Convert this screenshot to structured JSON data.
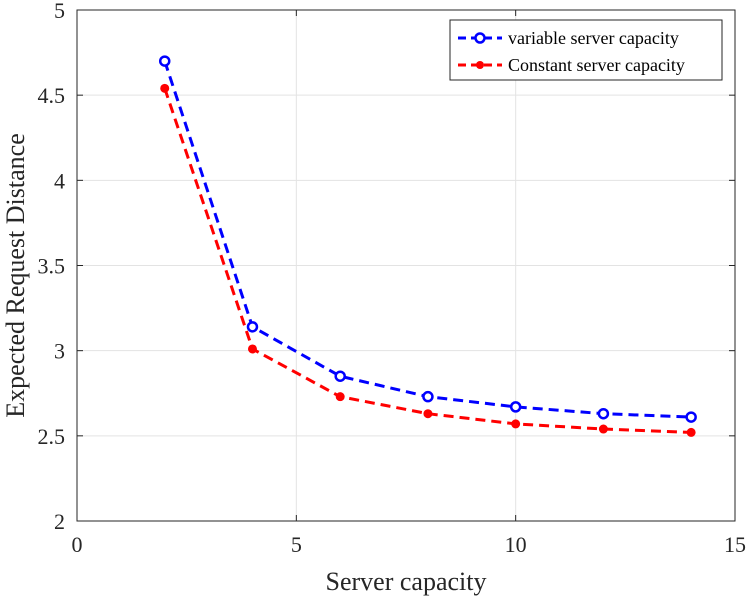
{
  "chart_data": {
    "type": "line",
    "title": "",
    "xlabel": "Server capacity",
    "ylabel": "Expected Request Distance",
    "xlim": [
      0,
      15
    ],
    "ylim": [
      2,
      5
    ],
    "xticks": [
      0,
      5,
      10,
      15
    ],
    "xtick_labels": [
      "0",
      "5",
      "10",
      "15"
    ],
    "yticks": [
      2,
      2.5,
      3,
      3.5,
      4,
      4.5,
      5
    ],
    "ytick_labels": [
      "2",
      "2.5",
      "3",
      "3.5",
      "4",
      "4.5",
      "5"
    ],
    "grid": true,
    "legend_position": "top-right",
    "x": [
      2,
      4,
      6,
      8,
      10,
      12,
      14
    ],
    "series": [
      {
        "name": "variable server capacity",
        "color": "#0000ff",
        "marker": "open-circle",
        "line_style": "dashed",
        "values": [
          4.7,
          3.14,
          2.85,
          2.73,
          2.67,
          2.63,
          2.61
        ]
      },
      {
        "name": "Constant server capacity",
        "color": "#ff0000",
        "marker": "filled-circle",
        "line_style": "dashed",
        "values": [
          4.54,
          3.01,
          2.73,
          2.63,
          2.57,
          2.54,
          2.52
        ]
      }
    ]
  }
}
